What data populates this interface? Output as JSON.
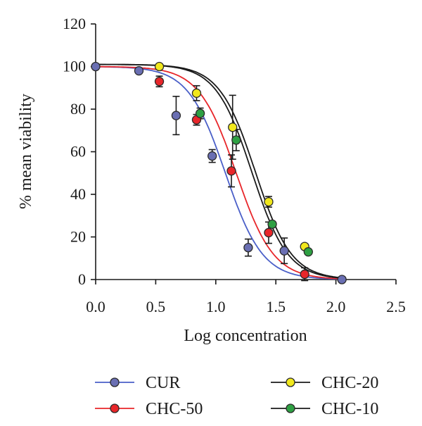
{
  "chart_data": {
    "type": "scatter",
    "title": "",
    "xlabel": "Log concentration",
    "ylabel": "% mean viability",
    "xlim": [
      0,
      2.5
    ],
    "ylim": [
      0,
      120
    ],
    "xticks": [
      "0.0",
      "0.5",
      "1.0",
      "1.5",
      "2.0",
      "2.5"
    ],
    "yticks": [
      "0",
      "20",
      "40",
      "60",
      "80",
      "100",
      "120"
    ],
    "grid": false,
    "legend_placement": "bottom",
    "series": [
      {
        "name": "CUR",
        "color": "#6a6fb3",
        "line_color": "#4a5fc8",
        "fit": {
          "top": 100,
          "bottom": 0,
          "logIC50": 1.08,
          "hill": 2.8
        },
        "points": [
          {
            "x": 0.0,
            "y": 100,
            "err": 0
          },
          {
            "x": 0.36,
            "y": 98,
            "err": 0
          },
          {
            "x": 0.67,
            "y": 77,
            "err": 9
          },
          {
            "x": 0.97,
            "y": 58,
            "err": 3
          },
          {
            "x": 1.27,
            "y": 15,
            "err": 4
          },
          {
            "x": 1.57,
            "y": 13.5,
            "err": 6
          },
          {
            "x": 2.05,
            "y": 0,
            "err": 0
          }
        ]
      },
      {
        "name": "CHC-50",
        "color": "#e8262a",
        "line_color": "#e8262a",
        "fit": {
          "top": 100,
          "bottom": 0,
          "logIC50": 1.17,
          "hill": 2.8
        },
        "points": [
          {
            "x": 0.53,
            "y": 93,
            "err": 2.5
          },
          {
            "x": 0.84,
            "y": 75,
            "err": 2.5
          },
          {
            "x": 1.13,
            "y": 51,
            "err": 7.5
          },
          {
            "x": 1.44,
            "y": 22,
            "err": 5
          },
          {
            "x": 1.74,
            "y": 2.5,
            "err": 3
          }
        ]
      },
      {
        "name": "CHC-20",
        "color": "#f1e81c",
        "line_color": "#1a1a1a",
        "fit": {
          "top": 101,
          "bottom": 0,
          "logIC50": 1.33,
          "hill": 2.9
        },
        "points": [
          {
            "x": 0.53,
            "y": 100,
            "err": 0
          },
          {
            "x": 0.84,
            "y": 87.5,
            "err": 3.5
          },
          {
            "x": 1.14,
            "y": 71.5,
            "err": 15
          },
          {
            "x": 1.44,
            "y": 36.5,
            "err": 2.5
          },
          {
            "x": 1.74,
            "y": 15.5,
            "err": 0
          }
        ]
      },
      {
        "name": "CHC-10",
        "color": "#2ea043",
        "line_color": "#1a1a1a",
        "fit": {
          "top": 101,
          "bottom": 0,
          "logIC50": 1.3,
          "hill": 2.9
        },
        "points": [
          {
            "x": 0.87,
            "y": 78,
            "err": 2.5
          },
          {
            "x": 1.17,
            "y": 65.5,
            "err": 5
          },
          {
            "x": 1.47,
            "y": 26,
            "err": 0
          },
          {
            "x": 1.77,
            "y": 13,
            "err": 0
          }
        ]
      }
    ],
    "legend": [
      {
        "series": "CUR"
      },
      {
        "series": "CHC-20"
      },
      {
        "series": "CHC-50"
      },
      {
        "series": "CHC-10"
      }
    ]
  }
}
